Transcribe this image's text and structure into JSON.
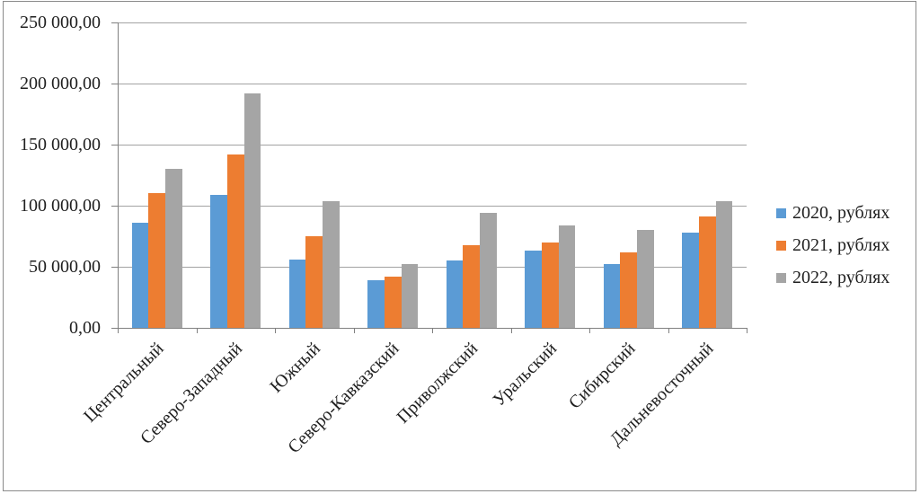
{
  "figure": {
    "background": "#ffffff",
    "border_color": "#8a8a8a"
  },
  "chart_data": {
    "type": "bar",
    "categories": [
      "Центральный",
      "Северо-Западный",
      "Южный",
      "Северо-Кавказский",
      "Приволжский",
      "Уральский",
      "Сибирский",
      "Дальневосточный"
    ],
    "series": [
      {
        "name": "2020, рублях",
        "color": "#5B9BD5",
        "values": [
          86000,
          109000,
          56000,
          39000,
          55000,
          63000,
          52000,
          78000
        ]
      },
      {
        "name": "2021, рублях",
        "color": "#ED7D31",
        "values": [
          110000,
          142000,
          75000,
          42000,
          68000,
          70000,
          62000,
          91000
        ]
      },
      {
        "name": "2022, рублях",
        "color": "#A5A5A5",
        "values": [
          130000,
          192000,
          104000,
          52000,
          94000,
          84000,
          80000,
          104000
        ]
      }
    ],
    "ylim": [
      0,
      250000
    ],
    "ytick_step": 50000,
    "ytick_labels": [
      "0,00",
      "50 000,00",
      "100 000,00",
      "150 000,00",
      "200 000,00",
      "250 000,00"
    ],
    "grid": true,
    "legend_position": "right",
    "axis_color": "#808080",
    "gridline_color": "#a3a3a3",
    "text_color": "#1f1f1f"
  }
}
